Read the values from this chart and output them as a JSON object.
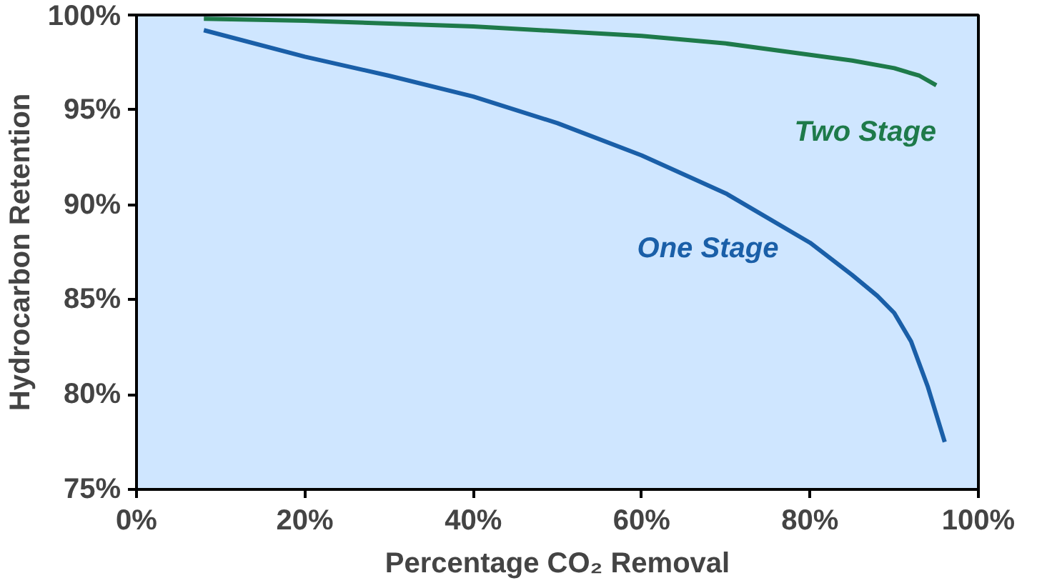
{
  "chart_data": {
    "type": "line",
    "xlabel": "Percentage CO₂ Removal",
    "ylabel": "Hydrocarbon Retention",
    "xlim": [
      0,
      100
    ],
    "ylim": [
      75,
      100
    ],
    "xticks": [
      {
        "value": 0,
        "label": "0%"
      },
      {
        "value": 20,
        "label": "20%"
      },
      {
        "value": 40,
        "label": "40%"
      },
      {
        "value": 60,
        "label": "60%"
      },
      {
        "value": 80,
        "label": "80%"
      },
      {
        "value": 100,
        "label": "100%"
      }
    ],
    "yticks": [
      {
        "value": 75,
        "label": "75%"
      },
      {
        "value": 80,
        "label": "80%"
      },
      {
        "value": 85,
        "label": "85%"
      },
      {
        "value": 90,
        "label": "90%"
      },
      {
        "value": 95,
        "label": "95%"
      },
      {
        "value": 100,
        "label": "100%"
      }
    ],
    "grid": false,
    "marker": "none",
    "line_style": "solid",
    "series": [
      {
        "name": "Two Stage",
        "color": "#1e7a4a",
        "x": [
          8,
          20,
          40,
          60,
          70,
          80,
          85,
          90,
          93,
          95
        ],
        "values": [
          99.8,
          99.7,
          99.4,
          98.9,
          98.5,
          97.9,
          97.6,
          97.2,
          96.8,
          96.3
        ]
      },
      {
        "name": "One Stage",
        "color": "#1a5fa8",
        "x": [
          8,
          20,
          30,
          40,
          50,
          60,
          70,
          80,
          85,
          88,
          90,
          92,
          94,
          96
        ],
        "values": [
          99.2,
          97.8,
          96.8,
          95.7,
          94.3,
          92.6,
          90.6,
          88.0,
          86.3,
          85.2,
          84.3,
          82.8,
          80.4,
          77.5
        ]
      }
    ]
  }
}
